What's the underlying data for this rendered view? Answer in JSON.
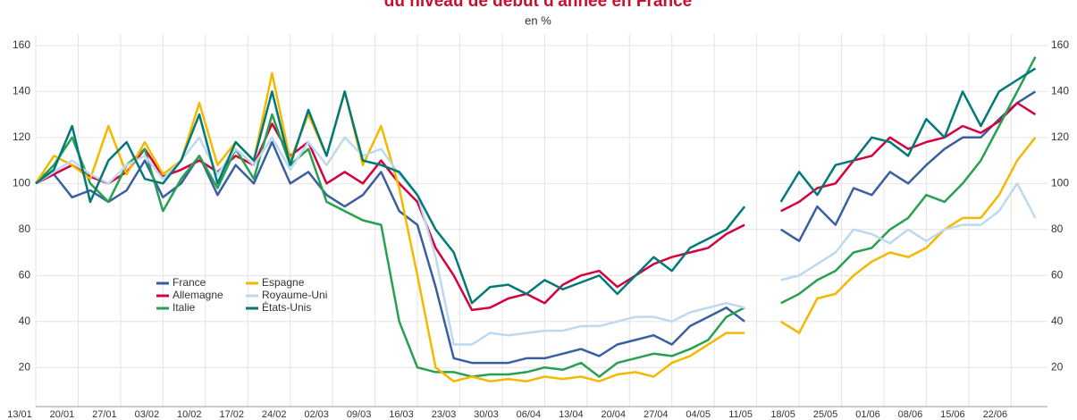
{
  "chart_data": {
    "type": "line",
    "title": "du niveau de début d'année en France",
    "subtitle": "en %",
    "x": [
      "13/01",
      "16/01",
      "19/01",
      "22/01",
      "25/01",
      "28/01",
      "31/01",
      "03/02",
      "06/02",
      "09/02",
      "12/02",
      "15/02",
      "18/02",
      "21/02",
      "24/02",
      "27/02",
      "01/03",
      "04/03",
      "07/03",
      "10/03",
      "13/03",
      "16/03",
      "19/03",
      "22/03",
      "25/03",
      "28/03",
      "31/03",
      "03/04",
      "06/04",
      "09/04",
      "12/04",
      "15/04",
      "18/04",
      "21/04",
      "24/04",
      "27/04",
      "30/04",
      "03/05",
      "06/05",
      "09/05",
      "12/05",
      "15/05",
      "18/05",
      "21/05",
      "24/05",
      "27/05",
      "30/05",
      "02/06",
      "05/06",
      "08/06",
      "11/06",
      "14/06",
      "17/06",
      "20/06",
      "23/06",
      "26/06"
    ],
    "series": [
      {
        "name": "France",
        "color": "#3a5fa0",
        "values": [
          100,
          104,
          94,
          97,
          92,
          97,
          110,
          94,
          100,
          112,
          95,
          108,
          100,
          118,
          100,
          105,
          95,
          90,
          95,
          105,
          88,
          82,
          55,
          24,
          22,
          22,
          22,
          24,
          24,
          26,
          28,
          25,
          30,
          32,
          34,
          30,
          38,
          42,
          46,
          40,
          null,
          80,
          75,
          90,
          82,
          98,
          95,
          105,
          100,
          108,
          115,
          120,
          120,
          128,
          135,
          140
        ]
      },
      {
        "name": "Allemagne",
        "color": "#d6003f",
        "values": [
          100,
          104,
          108,
          103,
          100,
          105,
          115,
          103,
          106,
          110,
          105,
          112,
          108,
          126,
          112,
          118,
          100,
          105,
          100,
          110,
          100,
          92,
          72,
          60,
          45,
          46,
          50,
          52,
          48,
          56,
          60,
          62,
          55,
          60,
          65,
          68,
          70,
          72,
          78,
          82,
          null,
          88,
          92,
          98,
          100,
          110,
          112,
          120,
          115,
          118,
          120,
          125,
          122,
          127,
          135,
          130
        ]
      },
      {
        "name": "Italie",
        "color": "#27a04f",
        "values": [
          100,
          108,
          120,
          100,
          92,
          108,
          115,
          88,
          102,
          112,
          98,
          115,
          102,
          130,
          108,
          115,
          92,
          88,
          84,
          82,
          40,
          20,
          18,
          18,
          16,
          17,
          17,
          18,
          20,
          19,
          22,
          16,
          22,
          24,
          26,
          25,
          28,
          32,
          42,
          46,
          null,
          48,
          52,
          58,
          62,
          70,
          72,
          80,
          85,
          95,
          92,
          100,
          110,
          125,
          140,
          155
        ]
      },
      {
        "name": "Espagne",
        "color": "#f5b800",
        "values": [
          100,
          112,
          108,
          102,
          125,
          104,
          118,
          104,
          110,
          135,
          108,
          118,
          110,
          148,
          110,
          130,
          112,
          140,
          108,
          125,
          98,
          60,
          20,
          14,
          16,
          14,
          15,
          14,
          16,
          15,
          16,
          14,
          17,
          18,
          16,
          22,
          25,
          30,
          35,
          35,
          null,
          40,
          35,
          50,
          52,
          60,
          66,
          70,
          68,
          72,
          80,
          85,
          85,
          95,
          110,
          120
        ]
      },
      {
        "name": "Royaume-Uni",
        "color": "#bcd9ef",
        "values": [
          100,
          105,
          110,
          104,
          100,
          108,
          112,
          102,
          110,
          120,
          104,
          115,
          108,
          120,
          106,
          118,
          108,
          120,
          112,
          115,
          104,
          95,
          68,
          30,
          30,
          35,
          34,
          35,
          36,
          36,
          38,
          38,
          40,
          42,
          42,
          40,
          44,
          46,
          48,
          46,
          null,
          58,
          60,
          65,
          70,
          80,
          78,
          74,
          80,
          75,
          80,
          82,
          82,
          88,
          100,
          85
        ]
      },
      {
        "name": "États-Unis",
        "color": "#007a78",
        "values": [
          100,
          106,
          125,
          92,
          110,
          118,
          102,
          100,
          110,
          130,
          100,
          118,
          110,
          140,
          108,
          132,
          112,
          140,
          110,
          108,
          105,
          95,
          80,
          70,
          48,
          55,
          56,
          52,
          58,
          54,
          57,
          60,
          52,
          60,
          68,
          62,
          72,
          76,
          80,
          90,
          null,
          92,
          105,
          95,
          108,
          110,
          120,
          118,
          112,
          128,
          120,
          140,
          125,
          140,
          145,
          150
        ]
      }
    ],
    "xlim": [
      "13/01",
      "28/06"
    ],
    "xticks": [
      "13/01",
      "20/01",
      "27/01",
      "03/02",
      "10/02",
      "17/02",
      "24/02",
      "02/03",
      "09/03",
      "16/03",
      "23/03",
      "30/03",
      "06/04",
      "13/04",
      "20/04",
      "27/04",
      "04/05",
      "11/05",
      "18/05",
      "25/05",
      "01/06",
      "08/06",
      "15/06",
      "22/06"
    ],
    "ylim": [
      3,
      165
    ],
    "yticks": [
      20,
      40,
      60,
      80,
      100,
      120,
      140,
      160
    ],
    "grid": true
  }
}
